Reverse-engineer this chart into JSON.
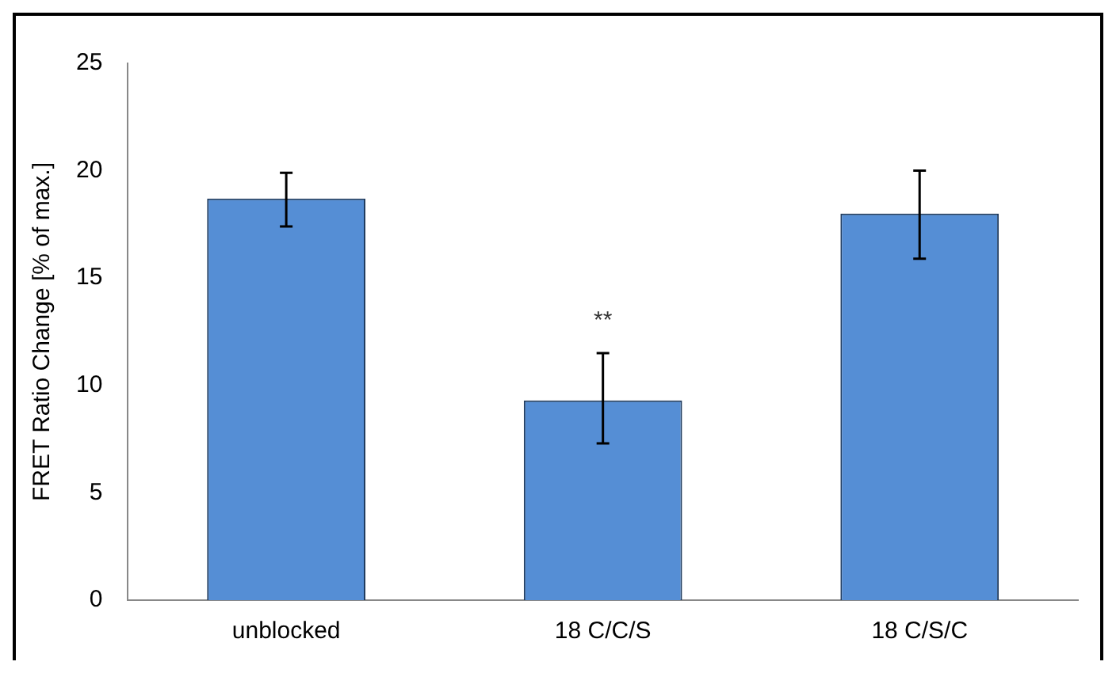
{
  "chart_data": {
    "type": "bar",
    "ylabel": "FRET Ratio Change [% of max.]",
    "categories": [
      "unblocked",
      "18 C/C/S",
      "18 C/S/C"
    ],
    "values": [
      18.7,
      9.3,
      18.0
    ],
    "color": "#558ed5",
    "errors": [
      [
        17.4,
        19.9
      ],
      [
        7.3,
        11.5
      ],
      [
        15.9,
        20.0
      ]
    ],
    "ylim": [
      0,
      25
    ],
    "yticks": [
      0,
      5,
      10,
      15,
      20,
      25
    ],
    "grid": false,
    "annotations": [
      {
        "text": "**",
        "x": "18 C/C/S",
        "y": 11.5
      }
    ]
  }
}
